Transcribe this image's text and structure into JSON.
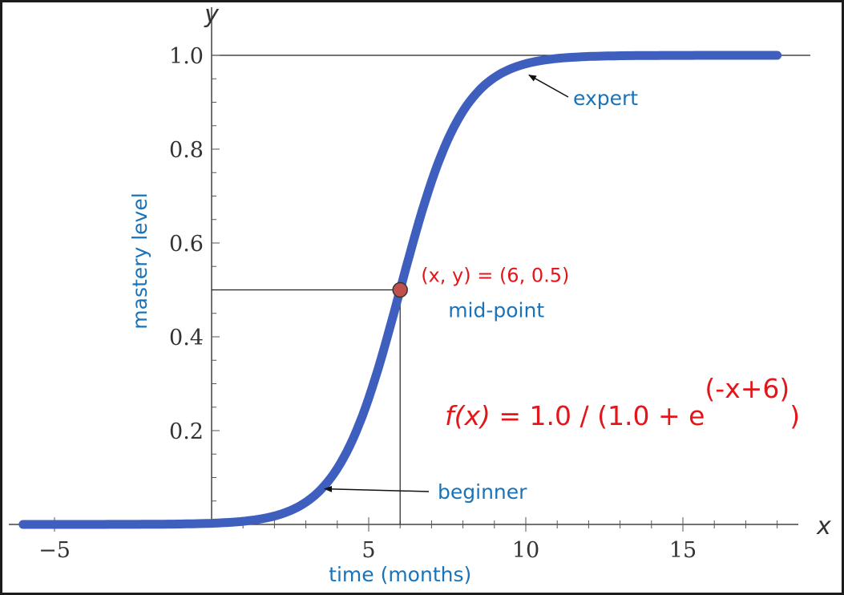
{
  "chart_data": {
    "type": "line",
    "series": [
      {
        "x": [
          -6,
          -4,
          -2,
          0,
          1,
          2,
          3,
          4,
          5,
          5.5,
          6,
          6.5,
          7,
          8,
          9,
          10,
          11,
          12,
          14,
          16,
          18
        ],
        "values": [
          0,
          0,
          0,
          0.002,
          0.007,
          0.018,
          0.047,
          0.119,
          0.269,
          0.378,
          0.5,
          0.622,
          0.731,
          0.881,
          0.953,
          0.982,
          0.993,
          0.998,
          1.0,
          1.0,
          1.0
        ],
        "color": "#3f5fbf"
      }
    ],
    "xlabel": "time (months)",
    "ylabel": "mastery level",
    "x_var": "x",
    "y_var": "y",
    "xlim": [
      -6.2,
      18.4
    ],
    "ylim": [
      0,
      1.03
    ],
    "x_ticks": [
      -5,
      5,
      10,
      15
    ],
    "x_tick_labels": [
      "−5",
      "5",
      "10",
      "15"
    ],
    "y_ticks": [
      0.2,
      0.4,
      0.6,
      0.8,
      1.0
    ],
    "y_tick_labels": [
      "0.2",
      "0.4",
      "0.6",
      "0.8",
      "1.0"
    ],
    "grid": false,
    "reference_line_y": 1.0,
    "midpoint": {
      "x": 6,
      "y": 0.5,
      "label": "(x, y) = (6, 0.5)",
      "caption": "mid-point",
      "color": "#c0504d"
    },
    "annotations": [
      {
        "text": "expert",
        "point_x": 10.1,
        "point_y": 0.958
      },
      {
        "text": "beginner",
        "point_x": 3.6,
        "point_y": 0.04
      }
    ],
    "formula": {
      "lhs": "f(x)",
      "eq": " = 1.0 / (1.0 + e",
      "exponent": "(-x+6)",
      "close": ")"
    }
  }
}
